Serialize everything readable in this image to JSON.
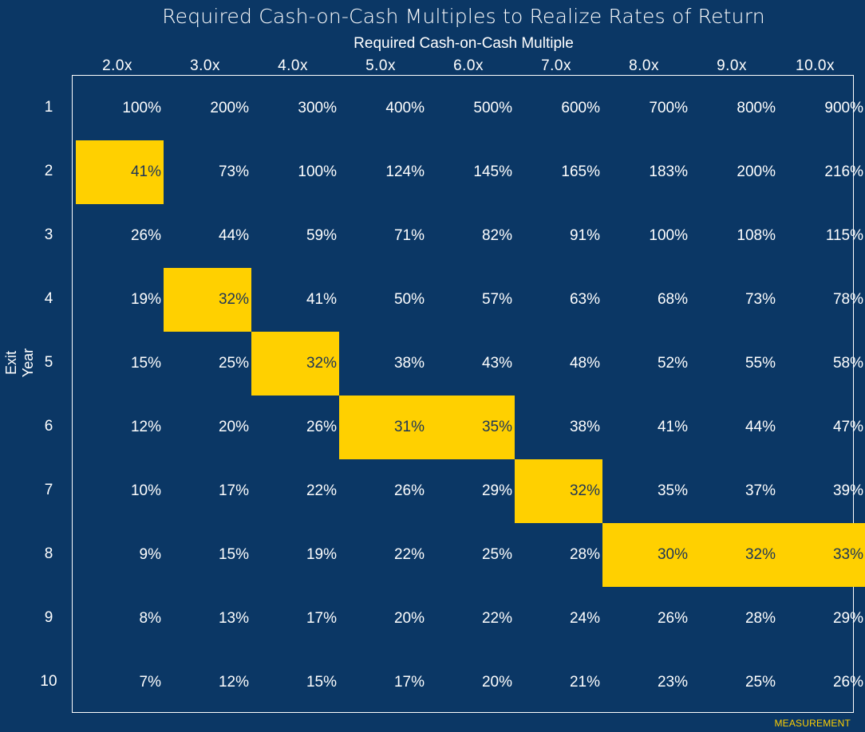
{
  "chart_data": {
    "type": "table",
    "title": "Required Cash-on-Cash Multiples to Realize Rates of Return",
    "subtitle": "Required Cash-on-Cash Multiple",
    "ylabel": "Exit Year",
    "columns": [
      "2.0x",
      "3.0x",
      "4.0x",
      "5.0x",
      "6.0x",
      "7.0x",
      "8.0x",
      "9.0x",
      "10.0x"
    ],
    "rows": [
      "1",
      "2",
      "3",
      "4",
      "5",
      "6",
      "7",
      "8",
      "9",
      "10"
    ],
    "values": [
      [
        "100%",
        "200%",
        "300%",
        "400%",
        "500%",
        "600%",
        "700%",
        "800%",
        "900%"
      ],
      [
        "41%",
        "73%",
        "100%",
        "124%",
        "145%",
        "165%",
        "183%",
        "200%",
        "216%"
      ],
      [
        "26%",
        "44%",
        "59%",
        "71%",
        "82%",
        "91%",
        "100%",
        "108%",
        "115%"
      ],
      [
        "19%",
        "32%",
        "41%",
        "50%",
        "57%",
        "63%",
        "68%",
        "73%",
        "78%"
      ],
      [
        "15%",
        "25%",
        "32%",
        "38%",
        "43%",
        "48%",
        "52%",
        "55%",
        "58%"
      ],
      [
        "12%",
        "20%",
        "26%",
        "31%",
        "35%",
        "38%",
        "41%",
        "44%",
        "47%"
      ],
      [
        "10%",
        "17%",
        "22%",
        "26%",
        "29%",
        "32%",
        "35%",
        "37%",
        "39%"
      ],
      [
        "9%",
        "15%",
        "19%",
        "22%",
        "25%",
        "28%",
        "30%",
        "32%",
        "33%"
      ],
      [
        "8%",
        "13%",
        "17%",
        "20%",
        "22%",
        "24%",
        "26%",
        "28%",
        "29%"
      ],
      [
        "7%",
        "12%",
        "15%",
        "17%",
        "20%",
        "21%",
        "23%",
        "25%",
        "26%"
      ]
    ],
    "highlighted": [
      [
        1,
        0
      ],
      [
        3,
        1
      ],
      [
        4,
        2
      ],
      [
        5,
        3
      ],
      [
        5,
        4
      ],
      [
        6,
        5
      ],
      [
        7,
        6
      ],
      [
        7,
        7
      ],
      [
        7,
        8
      ]
    ],
    "colors": {
      "background": "#0b3765",
      "highlight": "#ffd000",
      "text": "#ffffff",
      "highlight_text": "#1c3558"
    }
  },
  "footer": "MEASUREMENT"
}
